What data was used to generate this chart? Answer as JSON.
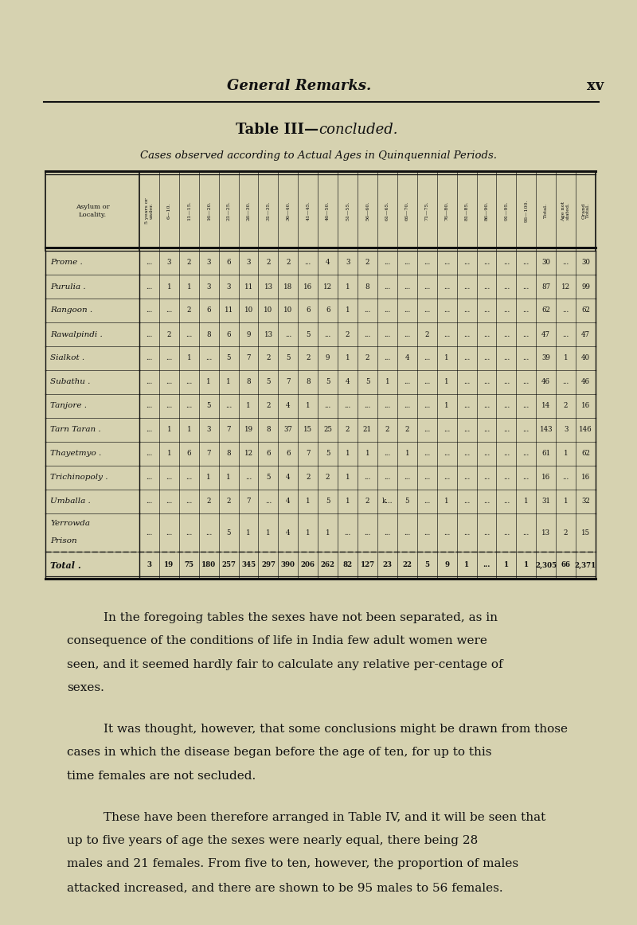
{
  "bg_color": "#d6d2b0",
  "page_header_left": "General Remarks.",
  "page_header_right": "xv",
  "table_title_bold": "Table III—",
  "table_title_italic": "concluded.",
  "table_subtitle": "Cases observed according to Actual Ages in Quinquennial Periods.",
  "col_headers": [
    "5 years or\nunder.",
    "6—10.",
    "11—15.",
    "16—20.",
    "21—25.",
    "26—30.",
    "31—35.",
    "36—40.",
    "41—45.",
    "46—50.",
    "51—55.",
    "56—60.",
    "61—65.",
    "66—70.",
    "71—75.",
    "76—80.",
    "81—85.",
    "86—90.",
    "91—95.",
    "96—100.",
    "Total.",
    "Age not\nstated.",
    "Grand\nTotal."
  ],
  "row_label_col": "Asylum or\nLocality.",
  "rows": [
    {
      "name": "Prome",
      "data": [
        "...",
        "3",
        "2",
        "3",
        "6",
        "3",
        "2",
        "2",
        "...",
        "4",
        "3",
        "2",
        "...",
        "...",
        "...",
        "...",
        "...",
        "...",
        "...",
        "...",
        "30",
        "...",
        "30"
      ]
    },
    {
      "name": "Purulia",
      "data": [
        "...",
        "1",
        "1",
        "3",
        "3",
        "11",
        "13",
        "18",
        "16",
        "12",
        "1",
        "8",
        "...",
        "...",
        "...",
        "...",
        "...",
        "...",
        "...",
        "...",
        "87",
        "12",
        "99"
      ]
    },
    {
      "name": "Rangoon",
      "data": [
        "...",
        "...",
        "2",
        "6",
        "11",
        "10",
        "10",
        "10",
        "6",
        "6",
        "1",
        "...",
        "...",
        "...",
        "...",
        "...",
        "...",
        "...",
        "...",
        "...",
        "62",
        "...",
        "62"
      ]
    },
    {
      "name": "Rawalpindi",
      "data": [
        "...",
        "2",
        "...",
        "8",
        "6",
        "9",
        "13",
        "...",
        "5",
        "...",
        "2",
        "...",
        "...",
        "...",
        "2",
        "...",
        "...",
        "...",
        "...",
        "...",
        "47",
        "...",
        "47"
      ]
    },
    {
      "name": "Sialkot",
      "data": [
        "...",
        "...",
        "1",
        "...",
        "5",
        "7",
        "2",
        "5",
        "2",
        "9",
        "1",
        "2",
        "...",
        "4",
        "...",
        "1",
        "...",
        "...",
        "...",
        "...",
        "39",
        "1",
        "40"
      ]
    },
    {
      "name": "Subathu",
      "data": [
        "...",
        "...",
        "...",
        "1",
        "1",
        "8",
        "5",
        "7",
        "8",
        "5",
        "4",
        "5",
        "1",
        "...",
        "...",
        "1",
        "...",
        "...",
        "...",
        "...",
        "46",
        "...",
        "46"
      ]
    },
    {
      "name": "Tanjore",
      "data": [
        "...",
        "...",
        "...",
        "5",
        "...",
        "1",
        "2",
        "4",
        "1",
        "...",
        "...",
        "...",
        "...",
        "...",
        "...",
        "1",
        "...",
        "...",
        "...",
        "...",
        "14",
        "2",
        "16"
      ]
    },
    {
      "name": "Tarn Taran",
      "data": [
        "...",
        "1",
        "1",
        "3",
        "7",
        "19",
        "8",
        "37",
        "15",
        "25",
        "2",
        "21",
        "2",
        "2",
        "...",
        "...",
        "...",
        "...",
        "...",
        "...",
        "143",
        "3",
        "146"
      ]
    },
    {
      "name": "Thayetmyo",
      "data": [
        "...",
        "1",
        "6",
        "7",
        "8",
        "12",
        "6",
        "6",
        "7",
        "5",
        "1",
        "1",
        "...",
        "1",
        "...",
        "...",
        "...",
        "...",
        "...",
        "...",
        "61",
        "1",
        "62"
      ]
    },
    {
      "name": "Trichinopoly",
      "data": [
        "...",
        "...",
        "...",
        "1",
        "1",
        "...",
        "5",
        "4",
        "2",
        "2",
        "1",
        "...",
        "...",
        "...",
        "...",
        "...",
        "...",
        "...",
        "...",
        "...",
        "16",
        "...",
        "16"
      ]
    },
    {
      "name": "Umballa",
      "data": [
        "...",
        "...",
        "...",
        "2",
        "2",
        "7",
        "...",
        "4",
        "1",
        "5",
        "1",
        "2",
        "k...",
        "5",
        "...",
        "1",
        "...",
        "...",
        "...",
        "1",
        "31",
        "1",
        "32"
      ]
    },
    {
      "name": "Yerrowda\nPrison",
      "data": [
        "...",
        "...",
        "...",
        "...",
        "5",
        "1",
        "1",
        "4",
        "1",
        "1",
        "...",
        "...",
        "...",
        "...",
        "...",
        "...",
        "...",
        "...",
        "...",
        "...",
        "13",
        "2",
        "15"
      ]
    }
  ],
  "total_row": {
    "name": "Total",
    "data": [
      "3",
      "19",
      "75",
      "180",
      "257",
      "345",
      "297",
      "390",
      "206",
      "262",
      "82",
      "127",
      "23",
      "22",
      "5",
      "9",
      "1",
      "...",
      "1",
      "1",
      "2,305",
      "66",
      "2,371"
    ]
  },
  "paragraphs": [
    "In the foregoing tables the sexes have not been separated, as in consequence of the conditions of life in India few adult women were seen, and it seemed hardly fair to calculate any relative per-centage of sexes.",
    "It was thought, however, that some conclusions might be drawn from those cases in which the disease began before the age of ten, for up to this time females are not secluded.",
    "These have been therefore arranged in Table IV, and it will be seen that up to five years of age the sexes were nearly equal, there being 28 males and 21 females.  From five to ten, however, the proportion of males attacked increased, and there are shown to be 95 males to 56 females."
  ]
}
